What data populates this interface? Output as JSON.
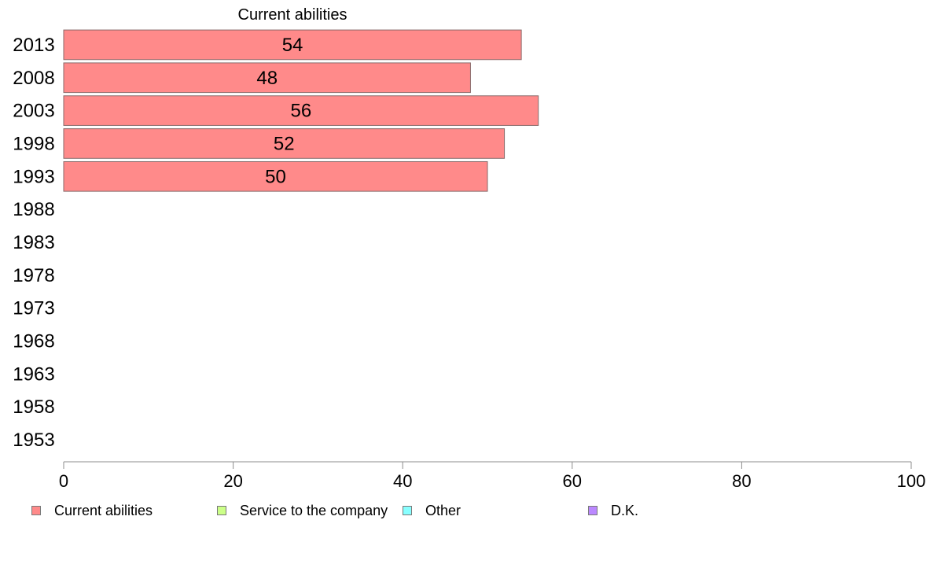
{
  "chart_data": {
    "type": "bar",
    "orientation": "horizontal",
    "title": "Current abilities",
    "categories": [
      "2013",
      "2008",
      "2003",
      "1998",
      "1993",
      "1988",
      "1983",
      "1978",
      "1973",
      "1968",
      "1963",
      "1958",
      "1953"
    ],
    "series": [
      {
        "name": "Current abilities",
        "color": "#ff8a8a",
        "values": [
          54,
          48,
          56,
          52,
          50,
          null,
          null,
          null,
          null,
          null,
          null,
          null,
          null
        ]
      }
    ],
    "xlim": [
      0,
      100
    ],
    "xticks": [
      "0",
      "20",
      "40",
      "60",
      "80",
      "100"
    ],
    "grid": false,
    "legend_position": "bottom",
    "legend": [
      {
        "label": "Current abilities",
        "color": "#ff8a8a"
      },
      {
        "label": "Service to the company",
        "color": "#ccff88"
      },
      {
        "label": "Other",
        "color": "#88ffff"
      },
      {
        "label": "D.K.",
        "color": "#bb88ff"
      }
    ]
  }
}
